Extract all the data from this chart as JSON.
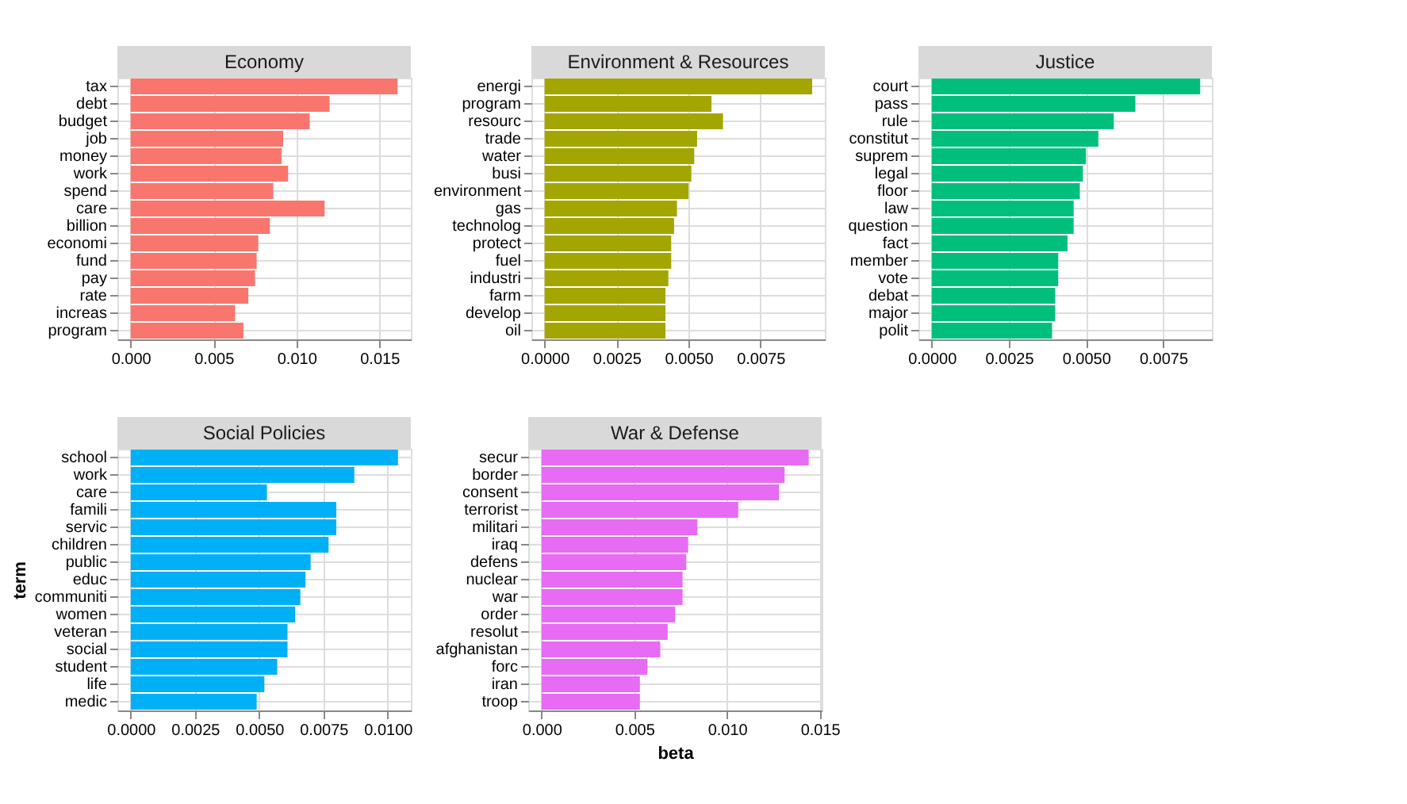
{
  "chart_data": [
    {
      "type": "bar",
      "orientation": "horizontal",
      "title": "Economy",
      "grid": true,
      "color": "#f8766d",
      "categories": [
        "tax",
        "debt",
        "budget",
        "job",
        "money",
        "work",
        "spend",
        "care",
        "billion",
        "economi",
        "fund",
        "pay",
        "rate",
        "increas",
        "program"
      ],
      "values": [
        0.0161,
        0.012,
        0.0108,
        0.0092,
        0.0091,
        0.0095,
        0.0086,
        0.0117,
        0.0084,
        0.0077,
        0.0076,
        0.0075,
        0.0071,
        0.0063,
        0.0068
      ],
      "xlim": [
        -0.0008,
        0.0169
      ],
      "xticks": [
        {
          "value": 0,
          "label": "0.000"
        },
        {
          "value": 0.005,
          "label": "0.005"
        },
        {
          "value": 0.01,
          "label": "0.010"
        },
        {
          "value": 0.015,
          "label": "0.015"
        }
      ]
    },
    {
      "type": "bar",
      "orientation": "horizontal",
      "title": "Environment & Resources",
      "grid": true,
      "color": "#a3a500",
      "categories": [
        "energi",
        "program",
        "resourc",
        "trade",
        "water",
        "busi",
        "environment",
        "gas",
        "technolog",
        "protect",
        "fuel",
        "industri",
        "farm",
        "develop",
        "oil"
      ],
      "values": [
        0.0093,
        0.0058,
        0.0062,
        0.0053,
        0.0052,
        0.0051,
        0.005,
        0.0046,
        0.0045,
        0.0044,
        0.0044,
        0.0043,
        0.0042,
        0.0042,
        0.0042
      ],
      "xlim": [
        -0.00046,
        0.00974
      ],
      "xticks": [
        {
          "value": 0,
          "label": "0.0000"
        },
        {
          "value": 0.0025,
          "label": "0.0025"
        },
        {
          "value": 0.005,
          "label": "0.0050"
        },
        {
          "value": 0.0075,
          "label": "0.0075"
        }
      ]
    },
    {
      "type": "bar",
      "orientation": "horizontal",
      "title": "Justice",
      "grid": true,
      "color": "#00bf7d",
      "categories": [
        "court",
        "pass",
        "rule",
        "constitut",
        "suprem",
        "legal",
        "floor",
        "law",
        "question",
        "fact",
        "member",
        "vote",
        "debat",
        "major",
        "polit"
      ],
      "values": [
        0.0087,
        0.0066,
        0.0059,
        0.0054,
        0.005,
        0.0049,
        0.0048,
        0.0046,
        0.0046,
        0.0044,
        0.0041,
        0.0041,
        0.004,
        0.004,
        0.0039
      ],
      "xlim": [
        -0.00043,
        0.00908
      ],
      "xticks": [
        {
          "value": 0,
          "label": "0.0000"
        },
        {
          "value": 0.0025,
          "label": "0.0025"
        },
        {
          "value": 0.005,
          "label": "0.0050"
        },
        {
          "value": 0.0075,
          "label": "0.0075"
        }
      ]
    },
    {
      "type": "bar",
      "orientation": "horizontal",
      "title": "Social Policies",
      "ylabel": "term",
      "grid": true,
      "color": "#00b0f6",
      "categories": [
        "school",
        "work",
        "care",
        "famili",
        "servic",
        "children",
        "public",
        "educ",
        "communiti",
        "women",
        "veteran",
        "social",
        "student",
        "life",
        "medic"
      ],
      "values": [
        0.0104,
        0.0087,
        0.0053,
        0.008,
        0.008,
        0.0077,
        0.007,
        0.0068,
        0.0066,
        0.0064,
        0.0061,
        0.0061,
        0.0057,
        0.0052,
        0.0049
      ],
      "xlim": [
        -0.00052,
        0.0109
      ],
      "xticks": [
        {
          "value": 0,
          "label": "0.0000"
        },
        {
          "value": 0.0025,
          "label": "0.0025"
        },
        {
          "value": 0.005,
          "label": "0.0050"
        },
        {
          "value": 0.0075,
          "label": "0.0075"
        },
        {
          "value": 0.01,
          "label": "0.0100"
        }
      ]
    },
    {
      "type": "bar",
      "orientation": "horizontal",
      "title": "War & Defense",
      "xlabel": "beta",
      "grid": true,
      "color": "#e76bf3",
      "categories": [
        "secur",
        "border",
        "consent",
        "terrorist",
        "militari",
        "iraq",
        "defens",
        "nuclear",
        "war",
        "order",
        "resolut",
        "afghanistan",
        "forc",
        "iran",
        "troop"
      ],
      "values": [
        0.0144,
        0.0131,
        0.0128,
        0.0106,
        0.0084,
        0.0079,
        0.0078,
        0.0076,
        0.0076,
        0.0072,
        0.0068,
        0.0064,
        0.0057,
        0.0053,
        0.0053
      ],
      "xlim": [
        -0.00072,
        0.0151
      ],
      "xticks": [
        {
          "value": 0,
          "label": "0.000"
        },
        {
          "value": 0.005,
          "label": "0.005"
        },
        {
          "value": 0.01,
          "label": "0.010"
        },
        {
          "value": 0.015,
          "label": "0.015"
        }
      ]
    }
  ]
}
